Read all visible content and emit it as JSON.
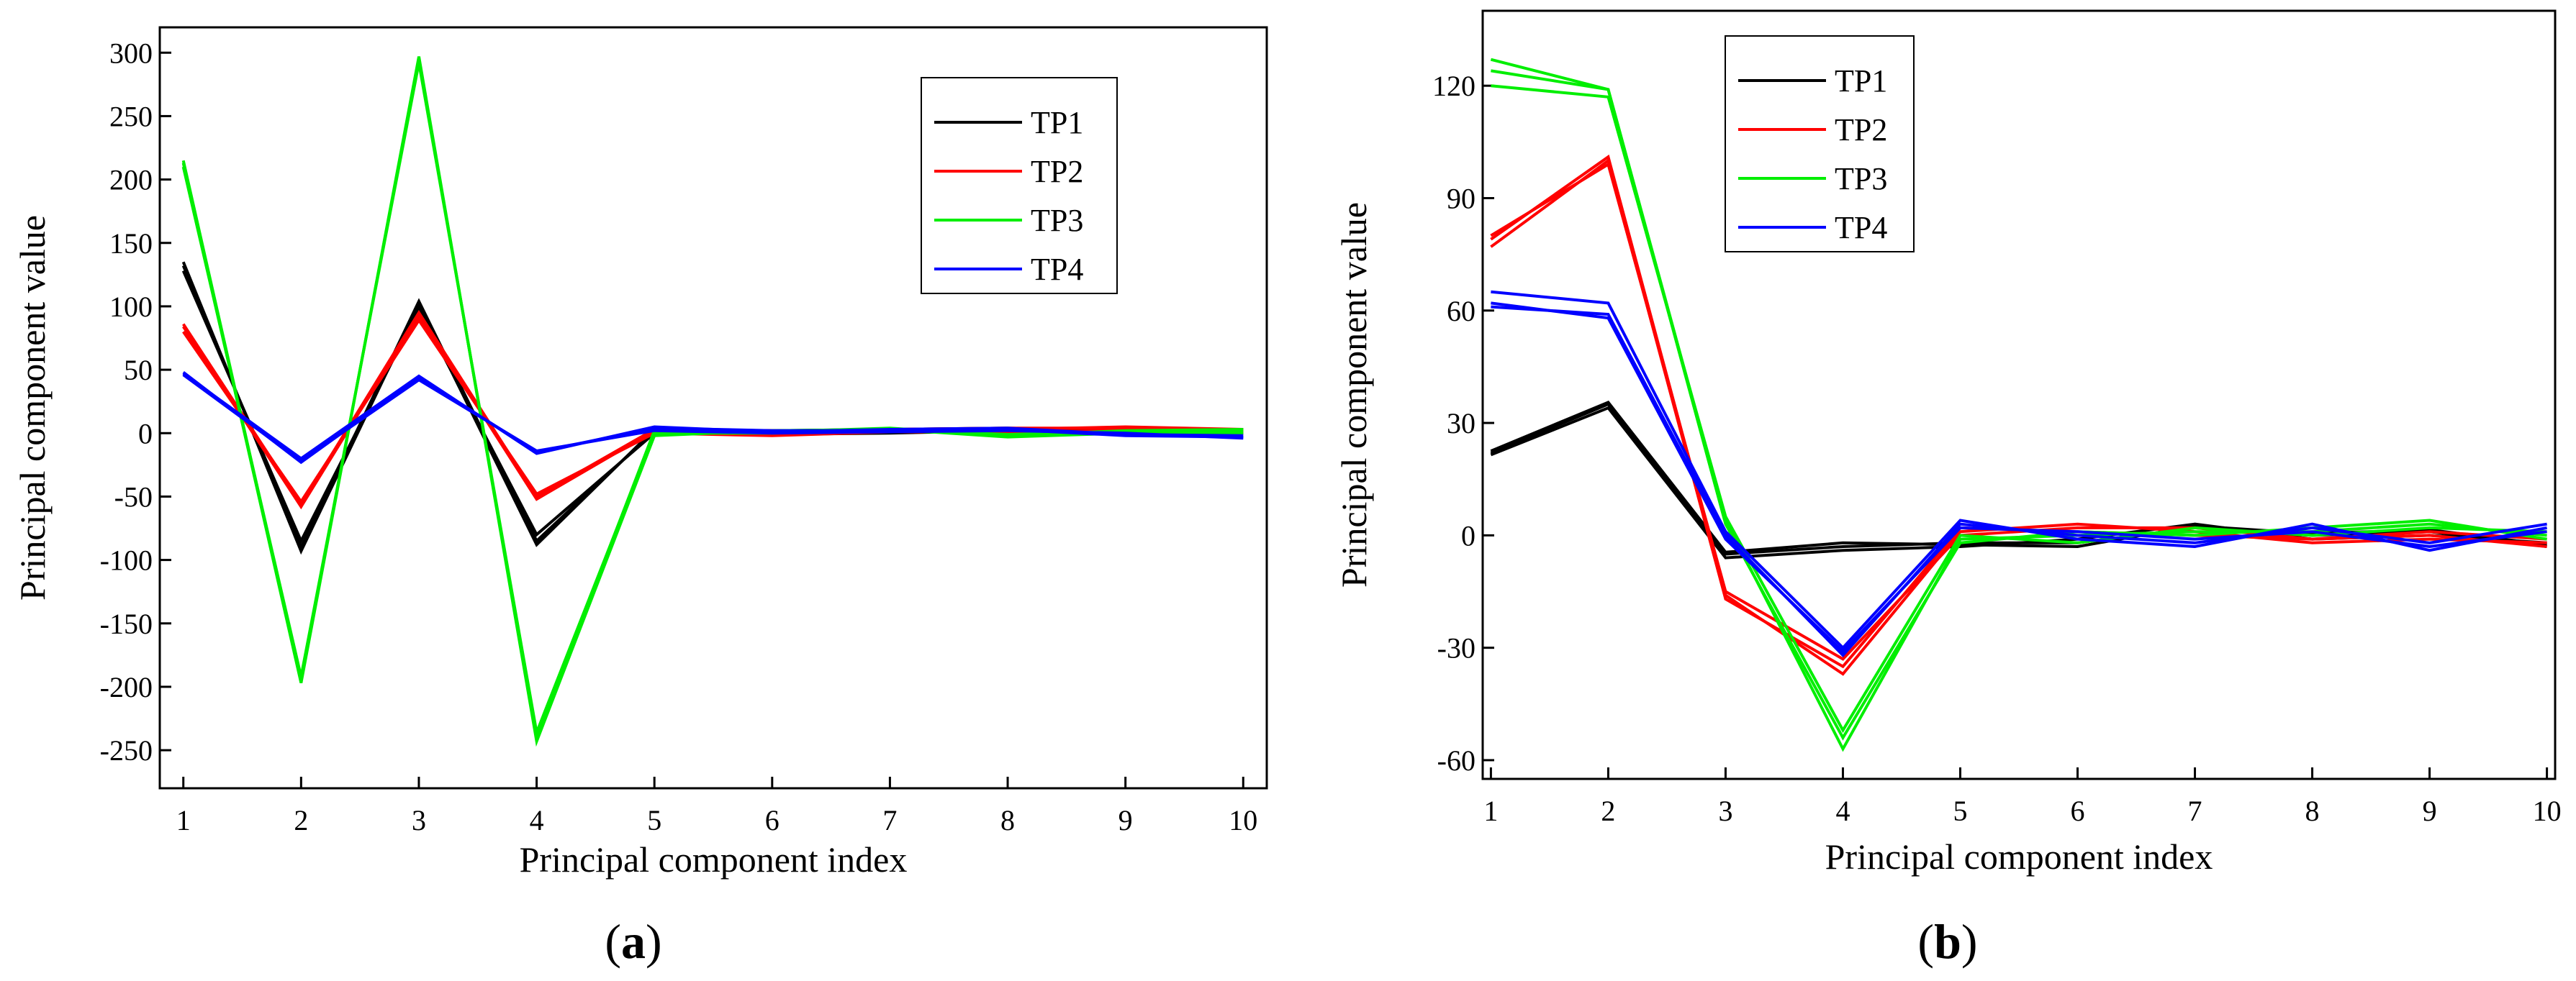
{
  "colors": {
    "TP1": "#000000",
    "TP2": "#ff0000",
    "TP3": "#00ee00",
    "TP4": "#0000ff",
    "axis": "#000000"
  },
  "chart_data": [
    {
      "type": "line",
      "panel_label": "a",
      "title": "",
      "xlabel": "Principal component index",
      "ylabel": "Principal component value",
      "x": [
        1,
        2,
        3,
        4,
        5,
        6,
        7,
        8,
        9,
        10
      ],
      "xlim": [
        0.8,
        10.2
      ],
      "ylim": [
        -280,
        320
      ],
      "xticks": [
        "1",
        "2",
        "3",
        "4",
        "5",
        "6",
        "7",
        "8",
        "9",
        "10"
      ],
      "yticks": [
        -250,
        -200,
        -150,
        -100,
        -50,
        0,
        50,
        100,
        150,
        200,
        250,
        300
      ],
      "legend_position": "top-right",
      "series": [
        {
          "name": "TP1",
          "color": "#000000",
          "lines": [
            [
              132,
              -90,
              104,
              -85,
              2,
              1,
              2,
              3,
              1,
              2
            ],
            [
              128,
              -85,
              98,
              -80,
              0,
              -1,
              0,
              2,
              -1,
              0
            ],
            [
              135,
              -93,
              101,
              -88,
              3,
              2,
              3,
              4,
              2,
              3
            ]
          ]
        },
        {
          "name": "TP2",
          "color": "#ff0000",
          "lines": [
            [
              84,
              -58,
              93,
              -52,
              2,
              2,
              2,
              3,
              5,
              3
            ],
            [
              80,
              -54,
              89,
              -48,
              0,
              -2,
              1,
              1,
              2,
              1
            ],
            [
              86,
              -56,
              95,
              -50,
              3,
              0,
              3,
              4,
              4,
              2
            ]
          ]
        },
        {
          "name": "TP3",
          "color": "#00ee00",
          "lines": [
            [
              213,
              -197,
              297,
              -243,
              -2,
              2,
              3,
              -3,
              0,
              2
            ],
            [
              210,
              -192,
              292,
              -236,
              0,
              0,
              2,
              -1,
              1,
              0
            ],
            [
              215,
              -195,
              295,
              -240,
              2,
              1,
              4,
              -2,
              2,
              3
            ]
          ]
        },
        {
          "name": "TP4",
          "color": "#0000ff",
          "lines": [
            [
              48,
              -23,
              44,
              -15,
              4,
              2,
              2,
              3,
              -2,
              -3
            ],
            [
              46,
              -22,
              42,
              -14,
              2,
              0,
              1,
              2,
              0,
              -4
            ],
            [
              47,
              -20,
              45,
              -16,
              5,
              1,
              3,
              4,
              -1,
              -2
            ]
          ]
        }
      ]
    },
    {
      "type": "line",
      "panel_label": "b",
      "title": "",
      "xlabel": "Principal component index",
      "ylabel": "Principal component value",
      "x": [
        1,
        2,
        3,
        4,
        5,
        6,
        7,
        8,
        9,
        10
      ],
      "xlim": [
        0.93,
        10.07
      ],
      "ylim": [
        -65,
        140
      ],
      "xticks": [
        "1",
        "2",
        "3",
        "4",
        "5",
        "6",
        "7",
        "8",
        "9",
        "10"
      ],
      "yticks": [
        -60,
        -30,
        0,
        30,
        60,
        90,
        120
      ],
      "legend_position": "top-center",
      "series": [
        {
          "name": "TP1",
          "color": "#000000",
          "lines": [
            [
              22,
              35,
              -5,
              -3,
              -2,
              -2,
              2,
              0,
              1,
              -3
            ],
            [
              21.5,
              34,
              -6,
              -4,
              -3,
              -1,
              3,
              -1,
              0,
              -2
            ],
            [
              22.5,
              35.5,
              -4.5,
              -2,
              -2.5,
              -3,
              2.5,
              0.5,
              1.5,
              -2.5
            ]
          ]
        },
        {
          "name": "TP2",
          "color": "#ff0000",
          "lines": [
            [
              79,
              101,
              -16,
              -37,
              1,
              3,
              1,
              -2,
              -1,
              -2
            ],
            [
              77,
              100,
              -17,
              -35,
              2,
              1,
              0,
              -1,
              1,
              -1
            ],
            [
              80,
              99,
              -15,
              -33,
              0,
              2,
              2,
              -1,
              0,
              -3
            ]
          ]
        },
        {
          "name": "TP3",
          "color": "#00ee00",
          "lines": [
            [
              127,
              119,
              4,
              -57,
              -1,
              0,
              1,
              1,
              3,
              0
            ],
            [
              120,
              117,
              5,
              -52,
              0,
              -2,
              2,
              0,
              2,
              1
            ],
            [
              124,
              119,
              3,
              -54,
              -2,
              1,
              0,
              2,
              4,
              -1
            ]
          ]
        },
        {
          "name": "TP4",
          "color": "#0000ff",
          "lines": [
            [
              65,
              62,
              1,
              -30,
              4,
              -1,
              -3,
              3,
              -4,
              2
            ],
            [
              61,
              59,
              0,
              -32,
              3,
              0,
              -2,
              2,
              -2,
              3
            ],
            [
              62,
              58,
              -1,
              -31,
              2,
              1,
              -1,
              1,
              -3,
              1
            ]
          ]
        }
      ]
    }
  ]
}
